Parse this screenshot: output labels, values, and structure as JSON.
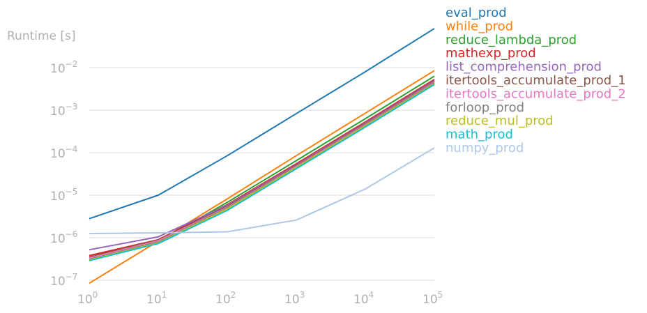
{
  "chart_data": {
    "type": "line",
    "xscale": "log",
    "yscale": "log",
    "xlim": [
      1,
      100000
    ],
    "ylim": [
      1e-07,
      0.01
    ],
    "x": [
      1,
      10,
      100,
      1000,
      10000,
      100000
    ],
    "ylabel": "Runtime [s]",
    "xlabel": "",
    "grid": "horizontal",
    "legend_position": "right",
    "xticks": [
      {
        "base": "10",
        "exp": "0"
      },
      {
        "base": "10",
        "exp": "1"
      },
      {
        "base": "10",
        "exp": "2"
      },
      {
        "base": "10",
        "exp": "3"
      },
      {
        "base": "10",
        "exp": "4"
      },
      {
        "base": "10",
        "exp": "5"
      }
    ],
    "yticks": [
      {
        "value": 1e-07,
        "base": "10",
        "exp": "−7"
      },
      {
        "value": 1e-06,
        "base": "10",
        "exp": "−6"
      },
      {
        "value": 1e-05,
        "base": "10",
        "exp": "−5"
      },
      {
        "value": 0.0001,
        "base": "10",
        "exp": "−4"
      },
      {
        "value": 0.001,
        "base": "10",
        "exp": "−3"
      },
      {
        "value": 0.01,
        "base": "10",
        "exp": "−2"
      }
    ],
    "series": [
      {
        "name": "eval_prod",
        "color": "#1f77b4",
        "values": [
          2.8e-06,
          1e-05,
          8.5e-05,
          0.00083,
          0.008,
          0.083
        ]
      },
      {
        "name": "while_prod",
        "color": "#ff7f0e",
        "values": [
          8.5e-08,
          8.3e-07,
          8.2e-06,
          8.5e-05,
          0.00085,
          0.0085
        ]
      },
      {
        "name": "reduce_lambda_prod",
        "color": "#2ca02c",
        "values": [
          3.2e-07,
          8e-07,
          6.8e-06,
          6.5e-05,
          0.00063,
          0.0063
        ]
      },
      {
        "name": "mathexp_prod",
        "color": "#d62728",
        "values": [
          3.8e-07,
          9e-07,
          6e-06,
          5.5e-05,
          0.00053,
          0.0053
        ]
      },
      {
        "name": "list_comprehension_prod",
        "color": "#9467bd",
        "values": [
          5.2e-07,
          1.05e-06,
          5.8e-06,
          5.2e-05,
          0.0005,
          0.005
        ]
      },
      {
        "name": "itertools_accumulate_prod_1",
        "color": "#8c564b",
        "values": [
          3.5e-07,
          8.8e-07,
          5.5e-06,
          5e-05,
          0.00048,
          0.0048
        ]
      },
      {
        "name": "itertools_accumulate_prod_2",
        "color": "#e377c2",
        "values": [
          3.3e-07,
          8.5e-07,
          5.2e-06,
          4.8e-05,
          0.00046,
          0.0046
        ]
      },
      {
        "name": "forloop_prod",
        "color": "#7f7f7f",
        "values": [
          3e-07,
          7.8e-07,
          5e-06,
          4.6e-05,
          0.00044,
          0.0044
        ]
      },
      {
        "name": "reduce_mul_prod",
        "color": "#bcbd22",
        "values": [
          3e-07,
          7.6e-07,
          4.8e-06,
          4.5e-05,
          0.00043,
          0.0042
        ]
      },
      {
        "name": "math_prod",
        "color": "#17becf",
        "values": [
          2.9e-07,
          7.3e-07,
          4.4e-06,
          4.2e-05,
          0.0004,
          0.004
        ]
      },
      {
        "name": "numpy_prod",
        "color": "#aec7e8",
        "values": [
          1.25e-06,
          1.3e-06,
          1.38e-06,
          2.6e-06,
          1.4e-05,
          0.00013
        ]
      }
    ]
  }
}
